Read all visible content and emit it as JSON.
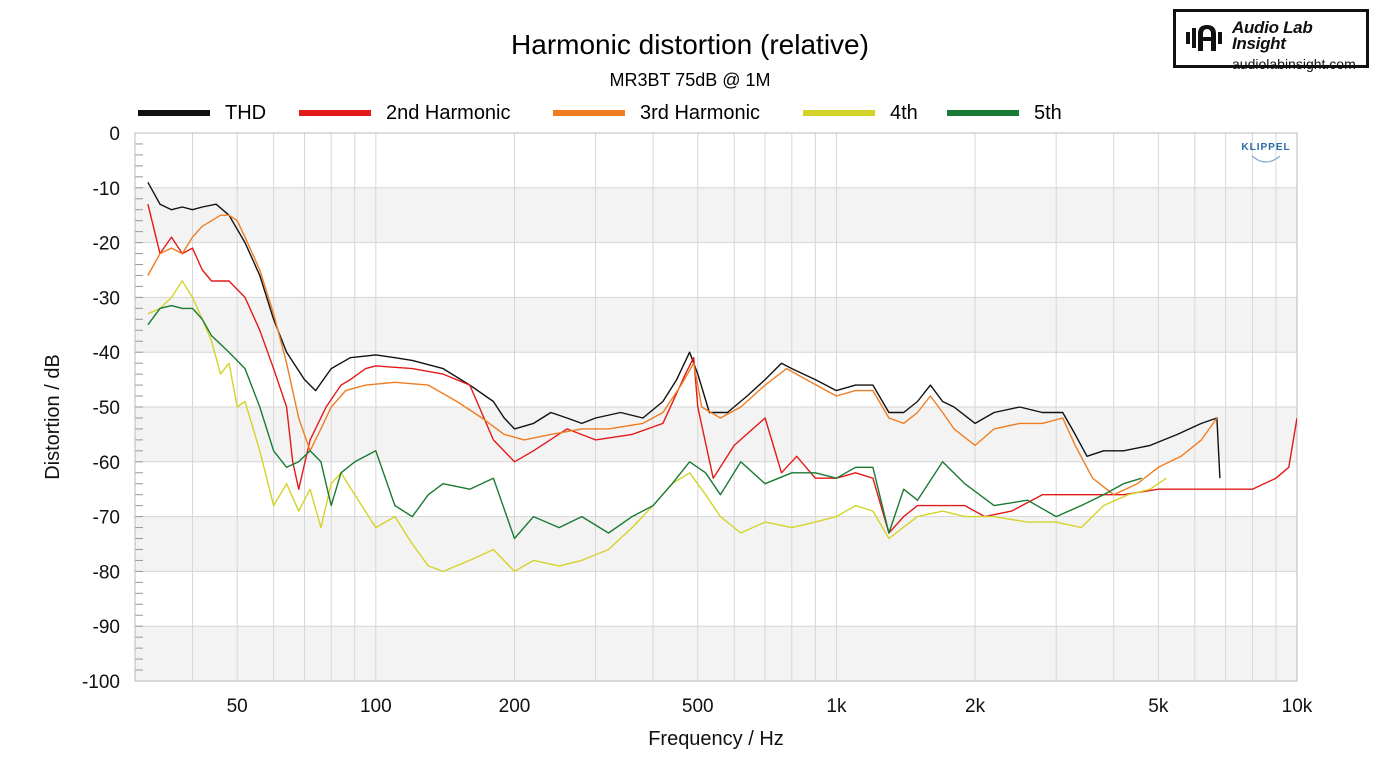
{
  "chart_data": {
    "type": "line",
    "title": "Harmonic distortion (relative)",
    "subtitle": "MR3BT 75dB @ 1M",
    "xlabel": "Frequency / Hz",
    "ylabel": "Distortion / dB",
    "xscale": "log",
    "xlim": [
      30,
      10000
    ],
    "ylim": [
      -100,
      0
    ],
    "xticks": [
      {
        "value": 50,
        "label": "50"
      },
      {
        "value": 100,
        "label": "100"
      },
      {
        "value": 200,
        "label": "200"
      },
      {
        "value": 500,
        "label": "500"
      },
      {
        "value": 1000,
        "label": "1k"
      },
      {
        "value": 2000,
        "label": "2k"
      },
      {
        "value": 5000,
        "label": "5k"
      },
      {
        "value": 10000,
        "label": "10k"
      }
    ],
    "yticks": [
      0,
      -10,
      -20,
      -30,
      -40,
      -50,
      -60,
      -70,
      -80,
      -90,
      -100
    ],
    "legend_position": "top",
    "series": [
      {
        "name": "THD",
        "color": "#111111",
        "points": [
          [
            32,
            -9
          ],
          [
            34,
            -13
          ],
          [
            36,
            -14
          ],
          [
            38,
            -13.5
          ],
          [
            40,
            -14
          ],
          [
            42,
            -13.5
          ],
          [
            45,
            -13
          ],
          [
            48,
            -15
          ],
          [
            52,
            -20
          ],
          [
            56,
            -26
          ],
          [
            60,
            -34
          ],
          [
            64,
            -40
          ],
          [
            70,
            -45
          ],
          [
            74,
            -47
          ],
          [
            80,
            -43
          ],
          [
            88,
            -41
          ],
          [
            100,
            -40.5
          ],
          [
            110,
            -41
          ],
          [
            120,
            -41.5
          ],
          [
            140,
            -43
          ],
          [
            160,
            -46
          ],
          [
            180,
            -49
          ],
          [
            190,
            -52
          ],
          [
            200,
            -54
          ],
          [
            220,
            -53
          ],
          [
            240,
            -51
          ],
          [
            260,
            -52
          ],
          [
            280,
            -53
          ],
          [
            300,
            -52
          ],
          [
            340,
            -51
          ],
          [
            380,
            -52
          ],
          [
            420,
            -49
          ],
          [
            450,
            -45
          ],
          [
            480,
            -40
          ],
          [
            500,
            -44
          ],
          [
            530,
            -51
          ],
          [
            580,
            -51
          ],
          [
            640,
            -48
          ],
          [
            700,
            -45
          ],
          [
            760,
            -42
          ],
          [
            800,
            -43
          ],
          [
            900,
            -45
          ],
          [
            1000,
            -47
          ],
          [
            1100,
            -46
          ],
          [
            1200,
            -46
          ],
          [
            1300,
            -51
          ],
          [
            1400,
            -51
          ],
          [
            1500,
            -49
          ],
          [
            1600,
            -46
          ],
          [
            1700,
            -49
          ],
          [
            1800,
            -50
          ],
          [
            2000,
            -53
          ],
          [
            2200,
            -51
          ],
          [
            2500,
            -50
          ],
          [
            2800,
            -51
          ],
          [
            3100,
            -51
          ],
          [
            3300,
            -55
          ],
          [
            3500,
            -59
          ],
          [
            3800,
            -58
          ],
          [
            4200,
            -58
          ],
          [
            4800,
            -57
          ],
          [
            5500,
            -55
          ],
          [
            6200,
            -53
          ],
          [
            6700,
            -52
          ],
          [
            6800,
            -63
          ]
        ]
      },
      {
        "name": "2nd Harmonic",
        "color": "#e31a1a",
        "points": [
          [
            32,
            -13
          ],
          [
            34,
            -22
          ],
          [
            36,
            -19
          ],
          [
            38,
            -22
          ],
          [
            40,
            -21
          ],
          [
            42,
            -25
          ],
          [
            44,
            -27
          ],
          [
            48,
            -27
          ],
          [
            52,
            -30
          ],
          [
            56,
            -36
          ],
          [
            60,
            -43
          ],
          [
            64,
            -50
          ],
          [
            66,
            -60
          ],
          [
            68,
            -65
          ],
          [
            72,
            -56
          ],
          [
            78,
            -50
          ],
          [
            84,
            -46
          ],
          [
            88,
            -45
          ],
          [
            95,
            -43
          ],
          [
            100,
            -42.5
          ],
          [
            120,
            -43
          ],
          [
            140,
            -44
          ],
          [
            160,
            -46
          ],
          [
            180,
            -56
          ],
          [
            200,
            -60
          ],
          [
            220,
            -58
          ],
          [
            260,
            -54
          ],
          [
            300,
            -56
          ],
          [
            360,
            -55
          ],
          [
            420,
            -53
          ],
          [
            470,
            -44
          ],
          [
            490,
            -41
          ],
          [
            500,
            -50
          ],
          [
            540,
            -63
          ],
          [
            600,
            -57
          ],
          [
            700,
            -52
          ],
          [
            760,
            -62
          ],
          [
            820,
            -59
          ],
          [
            900,
            -63
          ],
          [
            1000,
            -63
          ],
          [
            1100,
            -62
          ],
          [
            1200,
            -63
          ],
          [
            1300,
            -73
          ],
          [
            1400,
            -70
          ],
          [
            1500,
            -68
          ],
          [
            1700,
            -68
          ],
          [
            1900,
            -68
          ],
          [
            2100,
            -70
          ],
          [
            2400,
            -69
          ],
          [
            2800,
            -66
          ],
          [
            3200,
            -66
          ],
          [
            3600,
            -66
          ],
          [
            4200,
            -66
          ],
          [
            5000,
            -65
          ],
          [
            5600,
            -65
          ],
          [
            6200,
            -65
          ],
          [
            7000,
            -65
          ],
          [
            8000,
            -65
          ],
          [
            9000,
            -63
          ],
          [
            9600,
            -61
          ],
          [
            10000,
            -52
          ]
        ]
      },
      {
        "name": "3rd Harmonic",
        "color": "#f07d22",
        "points": [
          [
            32,
            -26
          ],
          [
            34,
            -22
          ],
          [
            36,
            -21
          ],
          [
            38,
            -22
          ],
          [
            40,
            -19
          ],
          [
            42,
            -17
          ],
          [
            44,
            -16
          ],
          [
            46,
            -15
          ],
          [
            48,
            -15
          ],
          [
            50,
            -16
          ],
          [
            52,
            -19
          ],
          [
            56,
            -25
          ],
          [
            60,
            -33
          ],
          [
            64,
            -42
          ],
          [
            68,
            -52
          ],
          [
            72,
            -58
          ],
          [
            76,
            -54
          ],
          [
            80,
            -50
          ],
          [
            86,
            -47
          ],
          [
            95,
            -46
          ],
          [
            110,
            -45.5
          ],
          [
            130,
            -46
          ],
          [
            150,
            -49
          ],
          [
            170,
            -52
          ],
          [
            190,
            -55
          ],
          [
            210,
            -56
          ],
          [
            240,
            -55
          ],
          [
            280,
            -54
          ],
          [
            320,
            -54
          ],
          [
            380,
            -53
          ],
          [
            420,
            -51
          ],
          [
            460,
            -46
          ],
          [
            490,
            -42
          ],
          [
            510,
            -50
          ],
          [
            560,
            -52
          ],
          [
            620,
            -50
          ],
          [
            700,
            -46
          ],
          [
            780,
            -43
          ],
          [
            860,
            -45
          ],
          [
            1000,
            -48
          ],
          [
            1100,
            -47
          ],
          [
            1200,
            -47
          ],
          [
            1300,
            -52
          ],
          [
            1400,
            -53
          ],
          [
            1500,
            -51
          ],
          [
            1600,
            -48
          ],
          [
            1700,
            -51
          ],
          [
            1800,
            -54
          ],
          [
            2000,
            -57
          ],
          [
            2200,
            -54
          ],
          [
            2500,
            -53
          ],
          [
            2800,
            -53
          ],
          [
            3100,
            -52
          ],
          [
            3300,
            -57
          ],
          [
            3600,
            -63
          ],
          [
            4000,
            -66
          ],
          [
            4500,
            -64
          ],
          [
            5000,
            -61
          ],
          [
            5600,
            -59
          ],
          [
            6200,
            -56
          ],
          [
            6700,
            -52
          ]
        ]
      },
      {
        "name": "4th",
        "color": "#d4d32a",
        "points": [
          [
            32,
            -33
          ],
          [
            34,
            -32
          ],
          [
            36,
            -30
          ],
          [
            38,
            -27
          ],
          [
            40,
            -30
          ],
          [
            42,
            -34
          ],
          [
            44,
            -38
          ],
          [
            46,
            -44
          ],
          [
            48,
            -42
          ],
          [
            50,
            -50
          ],
          [
            52,
            -49
          ],
          [
            56,
            -58
          ],
          [
            60,
            -68
          ],
          [
            64,
            -64
          ],
          [
            68,
            -69
          ],
          [
            72,
            -65
          ],
          [
            76,
            -72
          ],
          [
            80,
            -64
          ],
          [
            84,
            -62
          ],
          [
            90,
            -66
          ],
          [
            100,
            -72
          ],
          [
            110,
            -70
          ],
          [
            120,
            -75
          ],
          [
            130,
            -79
          ],
          [
            140,
            -80
          ],
          [
            160,
            -78
          ],
          [
            180,
            -76
          ],
          [
            200,
            -80
          ],
          [
            220,
            -78
          ],
          [
            250,
            -79
          ],
          [
            280,
            -78
          ],
          [
            320,
            -76
          ],
          [
            360,
            -72
          ],
          [
            400,
            -68
          ],
          [
            440,
            -64
          ],
          [
            480,
            -62
          ],
          [
            520,
            -66
          ],
          [
            560,
            -70
          ],
          [
            620,
            -73
          ],
          [
            700,
            -71
          ],
          [
            800,
            -72
          ],
          [
            900,
            -71
          ],
          [
            1000,
            -70
          ],
          [
            1100,
            -68
          ],
          [
            1200,
            -69
          ],
          [
            1300,
            -74
          ],
          [
            1500,
            -70
          ],
          [
            1700,
            -69
          ],
          [
            1900,
            -70
          ],
          [
            2200,
            -70
          ],
          [
            2600,
            -71
          ],
          [
            3000,
            -71
          ],
          [
            3400,
            -72
          ],
          [
            3800,
            -68
          ],
          [
            4300,
            -66
          ],
          [
            4800,
            -65
          ],
          [
            5200,
            -63
          ]
        ]
      },
      {
        "name": "5th",
        "color": "#1a7a34",
        "points": [
          [
            32,
            -35
          ],
          [
            34,
            -32
          ],
          [
            36,
            -31.5
          ],
          [
            38,
            -32
          ],
          [
            40,
            -32
          ],
          [
            42,
            -34
          ],
          [
            44,
            -37
          ],
          [
            48,
            -40
          ],
          [
            52,
            -43
          ],
          [
            56,
            -50
          ],
          [
            60,
            -58
          ],
          [
            64,
            -61
          ],
          [
            68,
            -60
          ],
          [
            72,
            -58
          ],
          [
            76,
            -60
          ],
          [
            80,
            -68
          ],
          [
            84,
            -62
          ],
          [
            90,
            -60
          ],
          [
            100,
            -58
          ],
          [
            110,
            -68
          ],
          [
            120,
            -70
          ],
          [
            130,
            -66
          ],
          [
            140,
            -64
          ],
          [
            160,
            -65
          ],
          [
            180,
            -63
          ],
          [
            200,
            -74
          ],
          [
            220,
            -70
          ],
          [
            250,
            -72
          ],
          [
            280,
            -70
          ],
          [
            320,
            -73
          ],
          [
            360,
            -70
          ],
          [
            400,
            -68
          ],
          [
            440,
            -64
          ],
          [
            480,
            -60
          ],
          [
            520,
            -62
          ],
          [
            560,
            -66
          ],
          [
            620,
            -60
          ],
          [
            700,
            -64
          ],
          [
            800,
            -62
          ],
          [
            900,
            -62
          ],
          [
            1000,
            -63
          ],
          [
            1100,
            -61
          ],
          [
            1200,
            -61
          ],
          [
            1300,
            -73
          ],
          [
            1400,
            -65
          ],
          [
            1500,
            -67
          ],
          [
            1700,
            -60
          ],
          [
            1900,
            -64
          ],
          [
            2200,
            -68
          ],
          [
            2600,
            -67
          ],
          [
            3000,
            -70
          ],
          [
            3400,
            -68
          ],
          [
            3800,
            -66
          ],
          [
            4200,
            -64
          ],
          [
            4600,
            -63
          ]
        ]
      }
    ]
  },
  "logo": {
    "name": "Audio Lab\nInsight",
    "url": "audiolabinsight.com"
  },
  "watermark": "KLIPPEL"
}
